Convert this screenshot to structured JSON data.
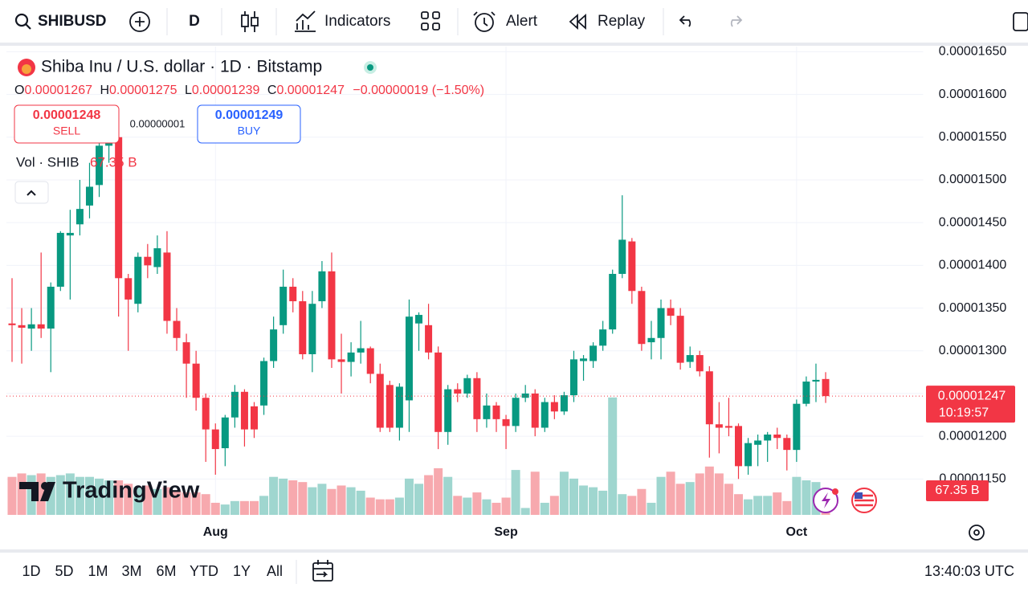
{
  "toolbar": {
    "symbol": "SHIBUSD",
    "interval": "D",
    "indicators": "Indicators",
    "alert": "Alert",
    "replay": "Replay"
  },
  "legend": {
    "title": "Shiba Inu / U.S. dollar · 1D · Bitstamp",
    "o": "O",
    "h": "H",
    "l": "L",
    "c": "C",
    "change": "−0.00000019 (−1.50%)",
    "sell_price": "0.00001248",
    "sell": "SELL",
    "spread": "0.00000001",
    "buy_price": "0.00001249",
    "buy": "BUY",
    "vol": "Vol · SHIB",
    "vol_value": "67.35 B",
    "countdown": "10:19:57"
  },
  "logo": "TradingView",
  "bottom_bar": {
    "ranges": [
      "1D",
      "5D",
      "1M",
      "3M",
      "6M",
      "YTD",
      "1Y",
      "All"
    ],
    "clock": "13:40:03 UTC"
  },
  "chart_data": {
    "type": "candlestick",
    "up_color": "#089981",
    "down_color": "#f23645",
    "volume_up_color": "#9fd6cf",
    "volume_down_color": "#f7a9ae",
    "categories": [
      null,
      null,
      null,
      null,
      null,
      null,
      null,
      null,
      null,
      null,
      null,
      null,
      null,
      null,
      null,
      null,
      null,
      null,
      null,
      null,
      null,
      "Aug",
      null,
      null,
      null,
      null,
      null,
      null,
      null,
      null,
      null,
      null,
      null,
      null,
      null,
      null,
      null,
      null,
      null,
      null,
      null,
      null,
      null,
      null,
      null,
      null,
      null,
      null,
      null,
      null,
      null,
      "Sep",
      null,
      null,
      null,
      null,
      null,
      null,
      null,
      null,
      null,
      null,
      null,
      null,
      null,
      null,
      null,
      null,
      null,
      null,
      null,
      null,
      null,
      null,
      null,
      null,
      null,
      null,
      null,
      null,
      null,
      "Oct",
      null,
      null,
      null
    ],
    "open": [
      1.332e-05,
      1.33e-05,
      1.326e-05,
      1.331e-05,
      1.326e-05,
      1.375e-05,
      1.435e-05,
      1.448e-05,
      1.47e-05,
      1.494e-05,
      1.54e-05,
      1.55e-05,
      1.385e-05,
      1.355e-05,
      1.41e-05,
      1.398e-05,
      1.415e-05,
      1.335e-05,
      1.31e-05,
      1.285e-05,
      1.245e-05,
      1.208e-05,
      1.186e-05,
      1.222e-05,
      1.252e-05,
      1.235e-05,
      1.236e-05,
      1.288e-05,
      1.33e-05,
      1.375e-05,
      1.358e-05,
      1.296e-05,
      1.358e-05,
      1.393e-05,
      1.29e-05,
      1.287e-05,
      1.298e-05,
      1.303e-05,
      1.273e-05,
      1.26e-05,
      1.21e-05,
      1.242e-05,
      1.332e-05,
      1.33e-05,
      1.298e-05,
      1.205e-05,
      1.255e-05,
      1.25e-05,
      1.268e-05,
      1.22e-05,
      1.236e-05,
      1.22e-05,
      1.212e-05,
      1.245e-05,
      1.25e-05,
      1.21e-05,
      1.24e-05,
      1.229e-05,
      1.248e-05,
      1.288e-05,
      1.288e-05,
      1.306e-05,
      1.325e-05,
      1.39e-05,
      1.428e-05,
      1.37e-05,
      1.31e-05,
      1.315e-05,
      1.35e-05,
      1.341e-05,
      1.287e-05,
      1.295e-05,
      1.276e-05,
      1.214e-05,
      1.212e-05,
      1.212e-05,
      1.165e-05,
      1.19e-05,
      1.195e-05,
      1.202e-05,
      1.198e-05,
      1.184e-05,
      1.238e-05,
      1.264e-05,
      1.267e-05
    ],
    "high": [
      1.385e-05,
      1.35e-05,
      1.35e-05,
      1.415e-05,
      1.38e-05,
      1.44e-05,
      1.465e-05,
      1.5e-05,
      1.52e-05,
      1.56e-05,
      1.575e-05,
      1.56e-05,
      1.39e-05,
      1.415e-05,
      1.425e-05,
      1.435e-05,
      1.44e-05,
      1.35e-05,
      1.32e-05,
      1.3e-05,
      1.25e-05,
      1.215e-05,
      1.225e-05,
      1.26e-05,
      1.255e-05,
      1.24e-05,
      1.292e-05,
      1.34e-05,
      1.395e-05,
      1.385e-05,
      1.37e-05,
      1.37e-05,
      1.405e-05,
      1.415e-05,
      1.32e-05,
      1.31e-05,
      1.335e-05,
      1.305e-05,
      1.285e-05,
      1.265e-05,
      1.262e-05,
      1.36e-05,
      1.345e-05,
      1.355e-05,
      1.305e-05,
      1.26e-05,
      1.262e-05,
      1.272e-05,
      1.275e-05,
      1.25e-05,
      1.24e-05,
      1.225e-05,
      1.25e-05,
      1.26e-05,
      1.255e-05,
      1.245e-05,
      1.248e-05,
      1.252e-05,
      1.3e-05,
      1.295e-05,
      1.31e-05,
      1.335e-05,
      1.395e-05,
      1.482e-05,
      1.432e-05,
      1.375e-05,
      1.335e-05,
      1.36e-05,
      1.36e-05,
      1.35e-05,
      1.305e-05,
      1.3e-05,
      1.282e-05,
      1.24e-05,
      1.245e-05,
      1.215e-05,
      1.198e-05,
      1.202e-05,
      1.205e-05,
      1.21e-05,
      1.202e-05,
      1.243e-05,
      1.27e-05,
      1.285e-05,
      1.275e-05
    ],
    "low": [
      1.287e-05,
      1.285e-05,
      1.3e-05,
      1.315e-05,
      1.275e-05,
      1.37e-05,
      1.36e-05,
      1.435e-05,
      1.455e-05,
      1.48e-05,
      1.52e-05,
      1.34e-05,
      1.3e-05,
      1.345e-05,
      1.385e-05,
      1.39e-05,
      1.32e-05,
      1.3e-05,
      1.245e-05,
      1.23e-05,
      1.17e-05,
      1.155e-05,
      1.165e-05,
      1.21e-05,
      1.188e-05,
      1.198e-05,
      1.225e-05,
      1.28e-05,
      1.32e-05,
      1.345e-05,
      1.29e-05,
      1.275e-05,
      1.35e-05,
      1.28e-05,
      1.25e-05,
      1.27e-05,
      1.285e-05,
      1.262e-05,
      1.205e-05,
      1.205e-05,
      1.195e-05,
      1.205e-05,
      1.3e-05,
      1.29e-05,
      1.185e-05,
      1.19e-05,
      1.24e-05,
      1.245e-05,
      1.205e-05,
      1.21e-05,
      1.205e-05,
      1.185e-05,
      1.205e-05,
      1.24e-05,
      1.2e-05,
      1.205e-05,
      1.22e-05,
      1.225e-05,
      1.24e-05,
      1.265e-05,
      1.28e-05,
      1.3e-05,
      1.32e-05,
      1.385e-05,
      1.355e-05,
      1.3e-05,
      1.29e-05,
      1.29e-05,
      1.33e-05,
      1.278e-05,
      1.28e-05,
      1.27e-05,
      1.175e-05,
      1.18e-05,
      1.2e-05,
      1.15e-05,
      1.155e-05,
      1.165e-05,
      1.17e-05,
      1.185e-05,
      1.16e-05,
      1.17e-05,
      1.235e-05,
      1.24e-05,
      1.239e-05
    ],
    "close": [
      1.33e-05,
      1.327e-05,
      1.331e-05,
      1.326e-05,
      1.375e-05,
      1.438e-05,
      1.438e-05,
      1.466e-05,
      1.492e-05,
      1.54e-05,
      1.555e-05,
      1.385e-05,
      1.36e-05,
      1.41e-05,
      1.4e-05,
      1.42e-05,
      1.335e-05,
      1.315e-05,
      1.285e-05,
      1.245e-05,
      1.208e-05,
      1.185e-05,
      1.222e-05,
      1.252e-05,
      1.208e-05,
      1.208e-05,
      1.288e-05,
      1.325e-05,
      1.375e-05,
      1.358e-05,
      1.296e-05,
      1.355e-05,
      1.393e-05,
      1.29e-05,
      1.287e-05,
      1.298e-05,
      1.303e-05,
      1.273e-05,
      1.21e-05,
      1.21e-05,
      1.258e-05,
      1.34e-05,
      1.342e-05,
      1.298e-05,
      1.205e-05,
      1.255e-05,
      1.25e-05,
      1.268e-05,
      1.22e-05,
      1.236e-05,
      1.22e-05,
      1.212e-05,
      1.245e-05,
      1.25e-05,
      1.21e-05,
      1.24e-05,
      1.229e-05,
      1.248e-05,
      1.29e-05,
      1.291e-05,
      1.306e-05,
      1.325e-05,
      1.39e-05,
      1.43e-05,
      1.37e-05,
      1.308e-05,
      1.315e-05,
      1.35e-05,
      1.341e-05,
      1.286e-05,
      1.295e-05,
      1.276e-05,
      1.214e-05,
      1.21e-05,
      1.21e-05,
      1.165e-05,
      1.192e-05,
      1.195e-05,
      1.202e-05,
      1.198e-05,
      1.184e-05,
      1.238e-05,
      1.264e-05,
      1.266e-05,
      1.247e-05
    ],
    "volume": [
      110,
      120,
      115,
      120,
      110,
      115,
      120,
      110,
      110,
      105,
      100,
      100,
      90,
      80,
      85,
      75,
      80,
      70,
      65,
      65,
      60,
      35,
      30,
      40,
      40,
      40,
      55,
      110,
      105,
      100,
      95,
      80,
      90,
      75,
      85,
      80,
      70,
      50,
      45,
      45,
      50,
      105,
      90,
      115,
      135,
      110,
      55,
      50,
      65,
      45,
      35,
      50,
      130,
      20,
      125,
      35,
      55,
      125,
      105,
      85,
      80,
      70,
      340,
      60,
      55,
      75,
      35,
      110,
      125,
      90,
      95,
      120,
      140,
      120,
      90,
      60,
      45,
      55,
      55,
      65,
      40,
      110,
      100,
      95,
      67.35
    ],
    "ylim": [
      1.108e-05,
      1.656e-05
    ],
    "yticks": [
      {
        "value": 1.15e-05,
        "label": "0.00001150"
      },
      {
        "value": 1.2e-05,
        "label": "0.00001200"
      },
      {
        "value": 1.25e-05,
        "label": "0.00001250"
      },
      {
        "value": 1.3e-05,
        "label": "0.00001300"
      },
      {
        "value": 1.35e-05,
        "label": "0.00001350"
      },
      {
        "value": 1.4e-05,
        "label": "0.00001400"
      },
      {
        "value": 1.45e-05,
        "label": "0.00001450"
      },
      {
        "value": 1.5e-05,
        "label": "0.00001500"
      },
      {
        "value": 1.55e-05,
        "label": "0.00001550"
      },
      {
        "value": 1.6e-05,
        "label": "0.00001600"
      },
      {
        "value": 1.65e-05,
        "label": "0.00001650"
      }
    ],
    "grid": true
  }
}
